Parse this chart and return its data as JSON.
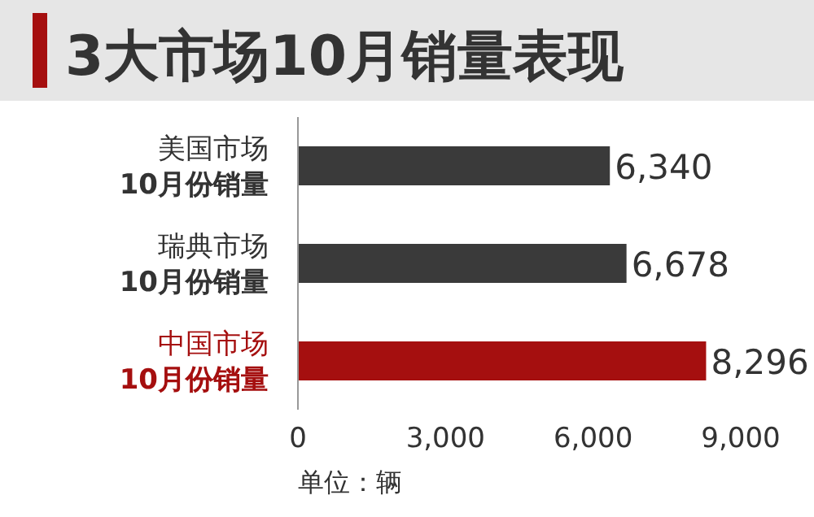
{
  "chart_data": {
    "type": "bar",
    "orientation": "horizontal",
    "title": "3大市场10月销量表现",
    "categories": [
      "美国市场\n**10月份销量**",
      "瑞典市场\n**10月份销量**",
      "中国市场\n**10月份销量**"
    ],
    "values": [
      6340,
      6678,
      8296
    ],
    "value_labels": [
      "6,340",
      "6,678",
      "8,296"
    ],
    "colors": [
      "#3a3a3a",
      "#3a3a3a",
      "#a50f0f"
    ],
    "xlim": [
      0,
      9000
    ],
    "xticks": [
      0,
      {
        "value": 3000,
        "label": "3,000"
      },
      {
        "value": 6000,
        "label": "6,000"
      },
      {
        "value": 9000,
        "label": "9,000"
      }
    ],
    "annotations": [
      "单位：辆"
    ]
  }
}
